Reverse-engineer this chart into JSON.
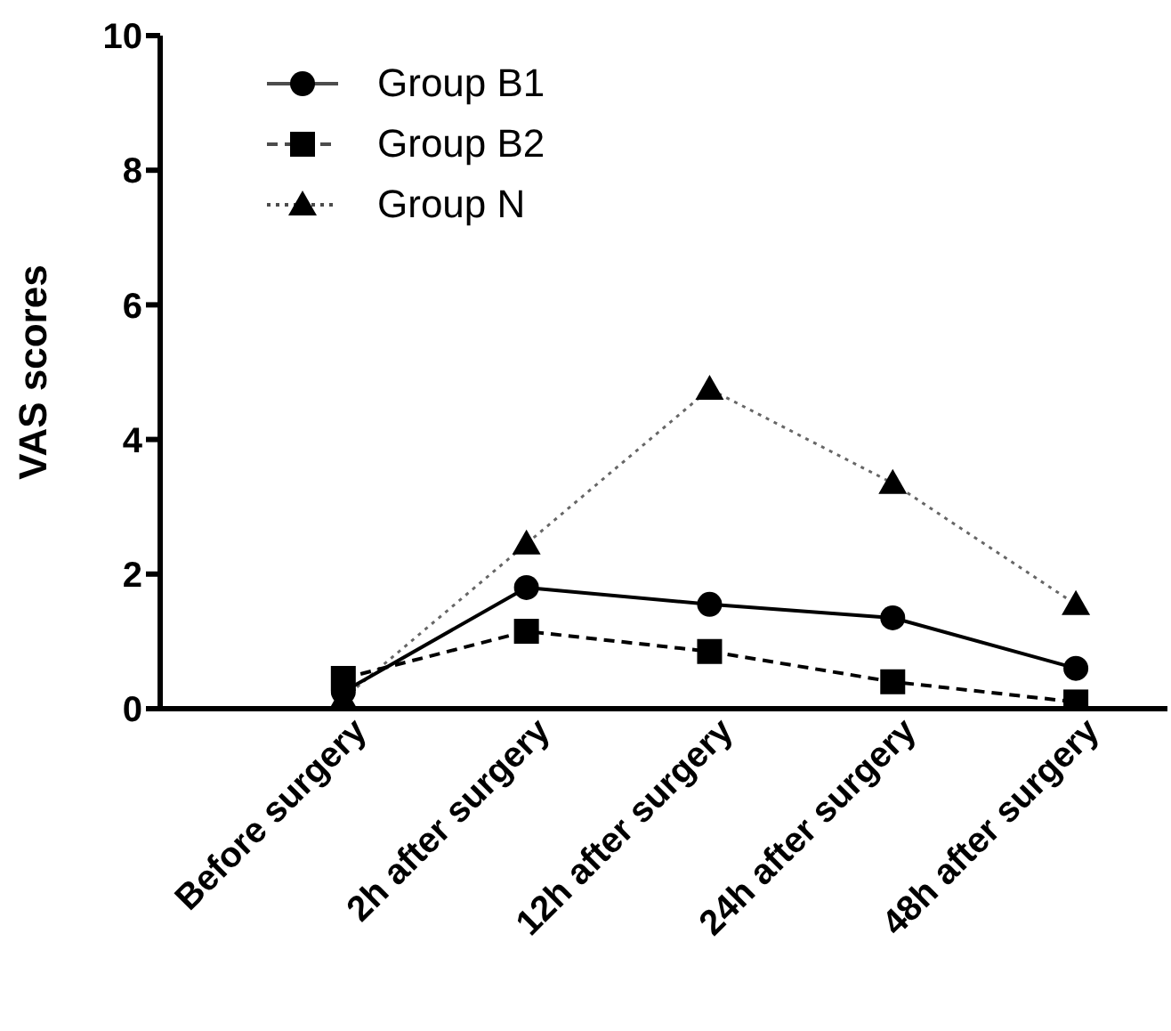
{
  "chart_data": {
    "type": "line",
    "ylabel": "VAS scores",
    "categories": [
      "Before surgery",
      "2h after surgery",
      "12h after surgery",
      "24h after surgery",
      "48h after surgery"
    ],
    "ylim": [
      0,
      10
    ],
    "yticks": [
      0,
      2,
      4,
      6,
      8,
      10
    ],
    "grid": false,
    "legend": "top left",
    "series": [
      {
        "name": "Group B1",
        "color": "#000000",
        "marker": "circle",
        "line_style": "solid",
        "values": [
          0.25,
          1.8,
          1.55,
          1.35,
          0.6
        ]
      },
      {
        "name": "Group B2",
        "color": "#000000",
        "marker": "square",
        "line_style": "dashed",
        "values": [
          0.45,
          1.15,
          0.85,
          0.4,
          0.1
        ]
      },
      {
        "name": "Group N",
        "color": "#000000",
        "marker": "triangle",
        "line_style": "dotted",
        "values": [
          0.15,
          2.45,
          4.75,
          3.35,
          1.55
        ]
      }
    ]
  }
}
